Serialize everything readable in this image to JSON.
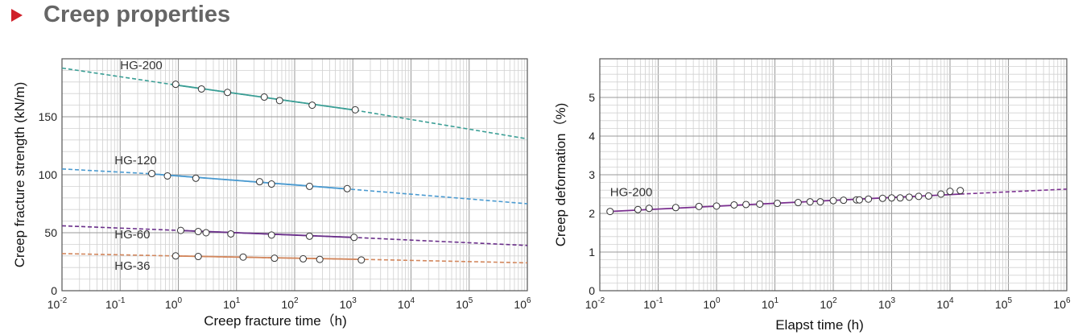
{
  "header": {
    "title": "Creep properties",
    "accent_color": "#d0202a"
  },
  "chart_data": [
    {
      "type": "line",
      "xlabel": "Creep fracture time（h)",
      "ylabel": "Creep fracture strength (kN/m)",
      "x_scale": "log",
      "xlim": [
        0.01,
        1000000
      ],
      "ylim": [
        0,
        200
      ],
      "x_ticks": [
        {
          "value": 0.01,
          "base": "10",
          "exp": "-2"
        },
        {
          "value": 0.1,
          "base": "10",
          "exp": "-1"
        },
        {
          "value": 1,
          "base": "10",
          "exp": "0"
        },
        {
          "value": 10,
          "base": "10",
          "exp": "1"
        },
        {
          "value": 100,
          "base": "10",
          "exp": "2"
        },
        {
          "value": 1000,
          "base": "10",
          "exp": "3"
        },
        {
          "value": 10000,
          "base": "10",
          "exp": "4"
        },
        {
          "value": 100000,
          "base": "10",
          "exp": "5"
        },
        {
          "value": 1000000,
          "base": "10",
          "exp": "6"
        }
      ],
      "y_ticks": [
        {
          "value": 0,
          "label": "0"
        },
        {
          "value": 50,
          "label": "50"
        },
        {
          "value": 100,
          "label": "100"
        },
        {
          "value": 150,
          "label": "150"
        }
      ],
      "grid": true,
      "series": [
        {
          "name": "HG-200",
          "color": "#3a9e95",
          "label_pos": {
            "x": 0.1,
            "y": 191
          },
          "solid": [
            [
              0.75,
              178
            ],
            [
              1000,
              156
            ]
          ],
          "dashed": [
            [
              0.01,
              192
            ],
            [
              0.75,
              178
            ],
            [
              1000,
              156
            ],
            [
              1000000,
              131
            ]
          ],
          "points": [
            [
              0.9,
              178
            ],
            [
              2.5,
              174
            ],
            [
              7,
              171
            ],
            [
              30,
              167
            ],
            [
              55,
              164
            ],
            [
              200,
              160
            ],
            [
              1100,
              156
            ]
          ]
        },
        {
          "name": "HG-120",
          "color": "#4a9ad0",
          "label_pos": {
            "x": 0.08,
            "y": 109
          },
          "solid": [
            [
              0.3,
              101
            ],
            [
              700,
              88
            ]
          ],
          "dashed": [
            [
              0.01,
              105
            ],
            [
              0.3,
              101
            ],
            [
              700,
              88
            ],
            [
              1000000,
              75
            ]
          ],
          "points": [
            [
              0.35,
              101
            ],
            [
              0.65,
              99
            ],
            [
              2,
              97
            ],
            [
              25,
              94
            ],
            [
              40,
              92
            ],
            [
              180,
              90
            ],
            [
              800,
              88
            ]
          ]
        },
        {
          "name": "HG-60",
          "color": "#6a2f8a",
          "label_pos": {
            "x": 0.08,
            "y": 45
          },
          "solid": [
            [
              1,
              52
            ],
            [
              1000,
              46
            ]
          ],
          "dashed": [
            [
              0.01,
              56
            ],
            [
              1,
              52
            ],
            [
              1000,
              46
            ],
            [
              1000000,
              39
            ]
          ],
          "points": [
            [
              1.1,
              52
            ],
            [
              2.2,
              51
            ],
            [
              3,
              50
            ],
            [
              8,
              49
            ],
            [
              40,
              48
            ],
            [
              180,
              47
            ],
            [
              1050,
              46
            ]
          ]
        },
        {
          "name": "HG-36",
          "color": "#d2865c",
          "label_pos": {
            "x": 0.08,
            "y": 18
          },
          "solid": [
            [
              0.8,
              30
            ],
            [
              1500,
              27
            ]
          ],
          "dashed": [
            [
              0.01,
              32
            ],
            [
              0.8,
              30
            ],
            [
              1500,
              27
            ],
            [
              1000000,
              24
            ]
          ],
          "points": [
            [
              0.9,
              30
            ],
            [
              2.2,
              29.5
            ],
            [
              13,
              29
            ],
            [
              45,
              28
            ],
            [
              140,
              27.5
            ],
            [
              270,
              27
            ],
            [
              1400,
              26.5
            ]
          ]
        }
      ]
    },
    {
      "type": "line",
      "xlabel": "Elapst time (h)",
      "ylabel": "Creep deformation（%)",
      "x_scale": "log",
      "xlim": [
        0.01,
        1000000
      ],
      "ylim": [
        0,
        6
      ],
      "x_ticks": [
        {
          "value": 0.01,
          "base": "10",
          "exp": "-2"
        },
        {
          "value": 0.1,
          "base": "10",
          "exp": "-1"
        },
        {
          "value": 1,
          "base": "10",
          "exp": "0"
        },
        {
          "value": 10,
          "base": "10",
          "exp": "1"
        },
        {
          "value": 100,
          "base": "10",
          "exp": "2"
        },
        {
          "value": 1000,
          "base": "10",
          "exp": "3"
        },
        {
          "value": 10000,
          "base": "10",
          "exp": "4"
        },
        {
          "value": 100000,
          "base": "10",
          "exp": "5"
        },
        {
          "value": 1000000,
          "base": "10",
          "exp": "6"
        }
      ],
      "y_ticks": [
        {
          "value": 0,
          "label": "0"
        },
        {
          "value": 1,
          "label": "1"
        },
        {
          "value": 2,
          "label": "2"
        },
        {
          "value": 3,
          "label": "3"
        },
        {
          "value": 4,
          "label": "4"
        },
        {
          "value": 5,
          "label": "5"
        }
      ],
      "grid": true,
      "series": [
        {
          "name": "HG-200",
          "color": "#7a2f8f",
          "label_pos": {
            "x": 0.015,
            "y": 2.45
          },
          "solid": [
            [
              0.015,
              2.05
            ],
            [
              15000,
              2.5
            ]
          ],
          "dashed": [
            [
              15000,
              2.5
            ],
            [
              1000000,
              2.63
            ]
          ],
          "points": [
            [
              0.015,
              2.05
            ],
            [
              0.045,
              2.1
            ],
            [
              0.07,
              2.13
            ],
            [
              0.2,
              2.15
            ],
            [
              0.5,
              2.18
            ],
            [
              1,
              2.19
            ],
            [
              2,
              2.22
            ],
            [
              3.2,
              2.23
            ],
            [
              5.5,
              2.24
            ],
            [
              11,
              2.26
            ],
            [
              25,
              2.28
            ],
            [
              40,
              2.3
            ],
            [
              60,
              2.3
            ],
            [
              100,
              2.33
            ],
            [
              150,
              2.34
            ],
            [
              250,
              2.35
            ],
            [
              280,
              2.35
            ],
            [
              400,
              2.37
            ],
            [
              700,
              2.39
            ],
            [
              1000,
              2.4
            ],
            [
              1400,
              2.4
            ],
            [
              2000,
              2.42
            ],
            [
              2900,
              2.44
            ],
            [
              4300,
              2.45
            ],
            [
              7000,
              2.5
            ],
            [
              10000,
              2.57
            ],
            [
              15000,
              2.59
            ]
          ]
        }
      ]
    }
  ]
}
